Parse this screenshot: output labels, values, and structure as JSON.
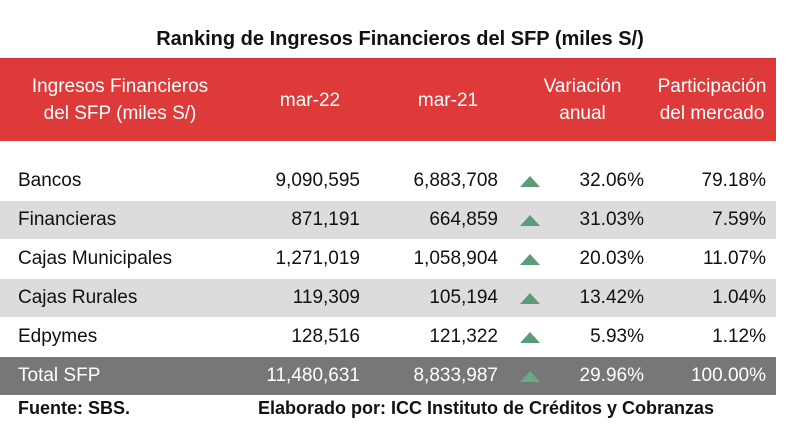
{
  "chart_data": {
    "type": "table",
    "title": "Ranking de Ingresos Financieros del SFP (miles S/)",
    "columns": [
      "Ingresos Financieros\ndel SFP (miles S/)",
      "mar-22",
      "mar-21",
      "Variación\nanual",
      "Participación\ndel mercado"
    ],
    "rows": [
      {
        "name": "Bancos",
        "mar22": "9,090,595",
        "mar21": "6,883,708",
        "trend": "up",
        "var": "32.06%",
        "part": "79.18%"
      },
      {
        "name": "Financieras",
        "mar22": "871,191",
        "mar21": "664,859",
        "trend": "up",
        "var": "31.03%",
        "part": "7.59%"
      },
      {
        "name": "Cajas Municipales",
        "mar22": "1,271,019",
        "mar21": "1,058,904",
        "trend": "up",
        "var": "20.03%",
        "part": "11.07%"
      },
      {
        "name": "Cajas Rurales",
        "mar22": "119,309",
        "mar21": "105,194",
        "trend": "up",
        "var": "13.42%",
        "part": "1.04%"
      },
      {
        "name": "Edpymes",
        "mar22": "128,516",
        "mar21": "121,322",
        "trend": "up",
        "var": "5.93%",
        "part": "1.12%"
      },
      {
        "name": "Total SFP",
        "mar22": "11,480,631",
        "mar21": "8,833,987",
        "trend": "up",
        "var": "29.96%",
        "part": "100.00%"
      }
    ],
    "source": "Fuente: SBS.",
    "credit": "Elaborado por: ICC Instituto de Créditos y Cobranzas",
    "colors": {
      "header": "#df3a3a",
      "shade": "#dcdcdc",
      "total": "#777777",
      "arrow": "#5d9b78"
    }
  }
}
